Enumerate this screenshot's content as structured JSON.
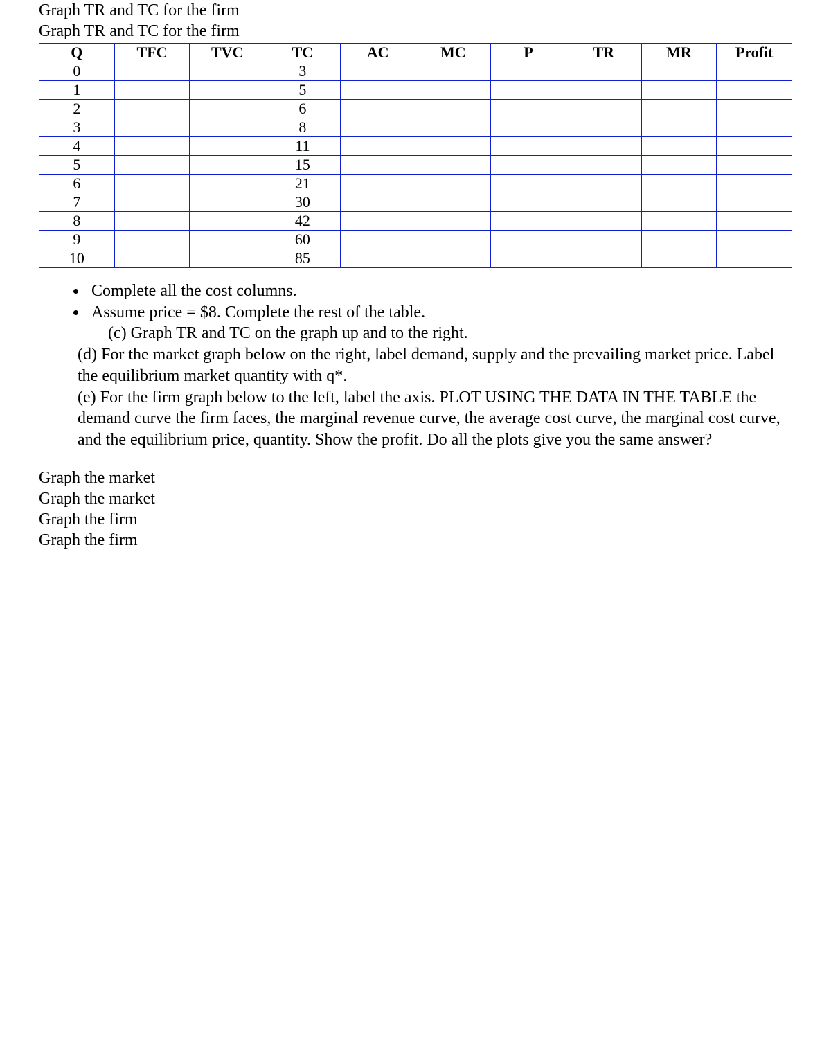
{
  "header": {
    "line1": "Graph TR and TC for the firm",
    "line2": "Graph TR and TC for the firm"
  },
  "table": {
    "type": "table",
    "border_color": "#1020d0",
    "background_color": "#ffffff",
    "text_color": "#000000",
    "font_family": "Times New Roman",
    "header_fontsize": 22,
    "cell_fontsize": 22,
    "columns": [
      "Q",
      "TFC",
      "TVC",
      "TC",
      "AC",
      "MC",
      "P",
      "TR",
      "MR",
      "Profit"
    ],
    "rows": [
      {
        "Q": "0",
        "TFC": "",
        "TVC": "",
        "TC": "3",
        "AC": "",
        "MC": "",
        "P": "",
        "TR": "",
        "MR": "",
        "Profit": ""
      },
      {
        "Q": "1",
        "TFC": "",
        "TVC": "",
        "TC": "5",
        "AC": "",
        "MC": "",
        "P": "",
        "TR": "",
        "MR": "",
        "Profit": ""
      },
      {
        "Q": "2",
        "TFC": "",
        "TVC": "",
        "TC": "6",
        "AC": "",
        "MC": "",
        "P": "",
        "TR": "",
        "MR": "",
        "Profit": ""
      },
      {
        "Q": "3",
        "TFC": "",
        "TVC": "",
        "TC": "8",
        "AC": "",
        "MC": "",
        "P": "",
        "TR": "",
        "MR": "",
        "Profit": ""
      },
      {
        "Q": "4",
        "TFC": "",
        "TVC": "",
        "TC": "11",
        "AC": "",
        "MC": "",
        "P": "",
        "TR": "",
        "MR": "",
        "Profit": ""
      },
      {
        "Q": "5",
        "TFC": "",
        "TVC": "",
        "TC": "15",
        "AC": "",
        "MC": "",
        "P": "",
        "TR": "",
        "MR": "",
        "Profit": ""
      },
      {
        "Q": "6",
        "TFC": "",
        "TVC": "",
        "TC": "21",
        "AC": "",
        "MC": "",
        "P": "",
        "TR": "",
        "MR": "",
        "Profit": ""
      },
      {
        "Q": "7",
        "TFC": "",
        "TVC": "",
        "TC": "30",
        "AC": "",
        "MC": "",
        "P": "",
        "TR": "",
        "MR": "",
        "Profit": ""
      },
      {
        "Q": "8",
        "TFC": "",
        "TVC": "",
        "TC": "42",
        "AC": "",
        "MC": "",
        "P": "",
        "TR": "",
        "MR": "",
        "Profit": ""
      },
      {
        "Q": "9",
        "TFC": "",
        "TVC": "",
        "TC": "60",
        "AC": "",
        "MC": "",
        "P": "",
        "TR": "",
        "MR": "",
        "Profit": ""
      },
      {
        "Q": "10",
        "TFC": "",
        "TVC": "",
        "TC": "85",
        "AC": "",
        "MC": "",
        "P": "",
        "TR": "",
        "MR": "",
        "Profit": ""
      }
    ]
  },
  "bullets": {
    "b1": "Complete all the cost columns.",
    "b2": "Assume price = $8.  Complete the rest of the table."
  },
  "sub_c": "(c)   Graph TR and TC on the graph up and to the right.",
  "para_d": "(d)   For the market graph below on the right, label demand, supply and the prevailing market price. Label the equilibrium market quantity with q*.",
  "para_e": "(e)  For the firm graph below to the left, label the axis. PLOT USING THE DATA IN THE TABLE the demand curve the firm faces, the marginal revenue curve, the average cost curve, the marginal cost curve, and the equilibrium price, quantity.  Show the profit. Do all the plots give you the same answer?",
  "footer": {
    "l1": "Graph the market",
    "l2": "Graph the market",
    "l3": "Graph the firm",
    "l4": "Graph the firm"
  }
}
